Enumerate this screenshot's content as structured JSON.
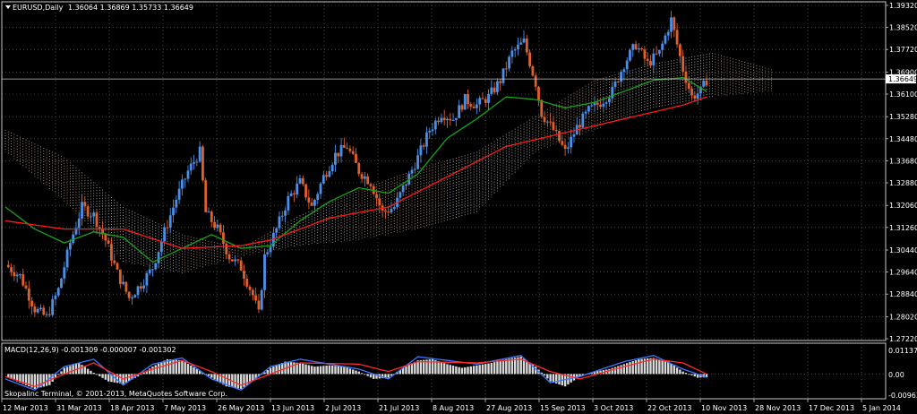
{
  "header": {
    "symbol_label": "EURUSD,Daily",
    "ohlc_label": "1.36064 1.36869 1.35733 1.36649"
  },
  "macd_panel": {
    "label": "MACD(12,26,9) -0.001309 -0.000007 -0.001302",
    "scale_top": "0.011372",
    "scale_zero": "0.00",
    "scale_bottom": "-0.009636"
  },
  "footer": {
    "copyright": "Skopalinc Terminal, © 2001-2013, MetaQuotes Software Corp."
  },
  "colors": {
    "background": "#000000",
    "grid": "#6f6f6f",
    "bull_candle": "#4a8fe8",
    "bear_candle": "#e0602a",
    "ma_fast": "#19a319",
    "ma_slow": "#ff1a1a",
    "cloud_bull": "#f0c8a0",
    "cloud_bear": "#e8e8e8",
    "macd_hist": "#d9d9d9",
    "macd_line": "#3a78ff",
    "signal_line": "#ff2a2a",
    "price_line": "#c8c8c8",
    "current_price_box": "#ffffff"
  },
  "chart_data": [
    {
      "type": "candlestick",
      "symbol": "EURUSD",
      "timeframe": "Daily",
      "ylim": [
        1.2722,
        1.3932
      ],
      "yticks": [
        "1.39320",
        "1.38520",
        "1.37720",
        "1.36900",
        "1.36100",
        "1.35280",
        "1.34480",
        "1.33680",
        "1.32880",
        "1.32060",
        "1.31260",
        "1.30440",
        "1.29640",
        "1.28840",
        "1.28020",
        "1.27220"
      ],
      "current_price": "1.36649",
      "x_ticks": [
        "12 Mar 2013",
        "31 Mar 2013",
        "18 Apr 2013",
        "7 May 2013",
        "26 May 2013",
        "13 Jun 2013",
        "2 Jul 2013",
        "21 Jul 2013",
        "8 Aug 2013",
        "27 Aug 2013",
        "15 Sep 2013",
        "3 Oct 2013",
        "22 Oct 2013",
        "10 Nov 2013",
        "28 Nov 2013",
        "17 Dec 2013",
        "5 Jan 2014"
      ],
      "close_path": [
        [
          0,
          1.299
        ],
        [
          5,
          1.295
        ],
        [
          10,
          1.283
        ],
        [
          14,
          1.28
        ],
        [
          18,
          1.29
        ],
        [
          22,
          1.307
        ],
        [
          26,
          1.32
        ],
        [
          30,
          1.317
        ],
        [
          34,
          1.308
        ],
        [
          38,
          1.296
        ],
        [
          42,
          1.287
        ],
        [
          46,
          1.292
        ],
        [
          50,
          1.298
        ],
        [
          54,
          1.311
        ],
        [
          58,
          1.323
        ],
        [
          62,
          1.333
        ],
        [
          66,
          1.34
        ],
        [
          68,
          1.318
        ],
        [
          72,
          1.312
        ],
        [
          76,
          1.302
        ],
        [
          80,
          1.298
        ],
        [
          84,
          1.288
        ],
        [
          86,
          1.281
        ],
        [
          88,
          1.302
        ],
        [
          92,
          1.312
        ],
        [
          96,
          1.323
        ],
        [
          100,
          1.329
        ],
        [
          104,
          1.32
        ],
        [
          108,
          1.331
        ],
        [
          112,
          1.339
        ],
        [
          116,
          1.342
        ],
        [
          120,
          1.333
        ],
        [
          124,
          1.329
        ],
        [
          128,
          1.318
        ],
        [
          132,
          1.32
        ],
        [
          136,
          1.329
        ],
        [
          140,
          1.338
        ],
        [
          144,
          1.348
        ],
        [
          148,
          1.354
        ],
        [
          152,
          1.352
        ],
        [
          156,
          1.359
        ],
        [
          160,
          1.357
        ],
        [
          164,
          1.36
        ],
        [
          168,
          1.366
        ],
        [
          172,
          1.376
        ],
        [
          176,
          1.38
        ],
        [
          180,
          1.365
        ],
        [
          182,
          1.354
        ],
        [
          186,
          1.348
        ],
        [
          190,
          1.34
        ],
        [
          194,
          1.349
        ],
        [
          198,
          1.355
        ],
        [
          202,
          1.358
        ],
        [
          206,
          1.362
        ],
        [
          210,
          1.372
        ],
        [
          214,
          1.379
        ],
        [
          218,
          1.372
        ],
        [
          222,
          1.376
        ],
        [
          226,
          1.388
        ],
        [
          230,
          1.37
        ],
        [
          233,
          1.36
        ],
        [
          236,
          1.362
        ],
        [
          238,
          1.366
        ]
      ],
      "ma_fast_path": [
        [
          0,
          1.32
        ],
        [
          10,
          1.312
        ],
        [
          20,
          1.307
        ],
        [
          30,
          1.311
        ],
        [
          40,
          1.309
        ],
        [
          50,
          1.3
        ],
        [
          60,
          1.305
        ],
        [
          70,
          1.31
        ],
        [
          80,
          1.305
        ],
        [
          90,
          1.306
        ],
        [
          100,
          1.315
        ],
        [
          110,
          1.322
        ],
        [
          120,
          1.327
        ],
        [
          130,
          1.325
        ],
        [
          140,
          1.332
        ],
        [
          150,
          1.345
        ],
        [
          160,
          1.352
        ],
        [
          170,
          1.36
        ],
        [
          180,
          1.359
        ],
        [
          190,
          1.356
        ],
        [
          200,
          1.358
        ],
        [
          210,
          1.362
        ],
        [
          220,
          1.366
        ],
        [
          230,
          1.367
        ],
        [
          238,
          1.362
        ]
      ],
      "ma_slow_path": [
        [
          0,
          1.315
        ],
        [
          20,
          1.312
        ],
        [
          40,
          1.312
        ],
        [
          60,
          1.305
        ],
        [
          80,
          1.306
        ],
        [
          90,
          1.308
        ],
        [
          110,
          1.316
        ],
        [
          130,
          1.32
        ],
        [
          150,
          1.331
        ],
        [
          170,
          1.342
        ],
        [
          190,
          1.347
        ],
        [
          210,
          1.352
        ],
        [
          230,
          1.357
        ],
        [
          238,
          1.36
        ]
      ],
      "cloud_path_top": [
        [
          0,
          1.348
        ],
        [
          20,
          1.338
        ],
        [
          40,
          1.32
        ],
        [
          60,
          1.31
        ],
        [
          80,
          1.305
        ],
        [
          100,
          1.317
        ],
        [
          120,
          1.326
        ],
        [
          140,
          1.334
        ],
        [
          160,
          1.34
        ],
        [
          180,
          1.353
        ],
        [
          200,
          1.366
        ],
        [
          220,
          1.372
        ],
        [
          240,
          1.376
        ],
        [
          260,
          1.37
        ]
      ],
      "cloud_path_bottom": [
        [
          0,
          1.34
        ],
        [
          20,
          1.322
        ],
        [
          40,
          1.3
        ],
        [
          60,
          1.296
        ],
        [
          80,
          1.302
        ],
        [
          100,
          1.306
        ],
        [
          120,
          1.308
        ],
        [
          140,
          1.312
        ],
        [
          160,
          1.318
        ],
        [
          180,
          1.34
        ],
        [
          200,
          1.348
        ],
        [
          220,
          1.356
        ],
        [
          240,
          1.36
        ],
        [
          260,
          1.362
        ]
      ]
    },
    {
      "type": "macd",
      "ylim": [
        -0.009636,
        0.011372
      ],
      "histogram_path": [
        [
          0,
          -0.001
        ],
        [
          5,
          -0.0035
        ],
        [
          10,
          -0.006
        ],
        [
          15,
          -0.0045
        ],
        [
          20,
          0.0025
        ],
        [
          25,
          0.0045
        ],
        [
          30,
          0.0005
        ],
        [
          35,
          -0.003
        ],
        [
          40,
          -0.004
        ],
        [
          45,
          -0.001
        ],
        [
          50,
          0.003
        ],
        [
          55,
          0.006
        ],
        [
          60,
          0.0055
        ],
        [
          65,
          0.002
        ],
        [
          70,
          -0.0015
        ],
        [
          75,
          -0.005
        ],
        [
          80,
          -0.006
        ],
        [
          85,
          -0.002
        ],
        [
          90,
          0.0025
        ],
        [
          95,
          0.005
        ],
        [
          100,
          0.0045
        ],
        [
          105,
          0.003
        ],
        [
          110,
          0.0035
        ],
        [
          115,
          0.003
        ],
        [
          120,
          0.001
        ],
        [
          125,
          -0.002
        ],
        [
          130,
          -0.0015
        ],
        [
          135,
          0.0025
        ],
        [
          140,
          0.0055
        ],
        [
          145,
          0.006
        ],
        [
          150,
          0.004
        ],
        [
          155,
          0.0025
        ],
        [
          160,
          0.0035
        ],
        [
          165,
          0.0045
        ],
        [
          170,
          0.006
        ],
        [
          175,
          0.007
        ],
        [
          180,
          0.003
        ],
        [
          185,
          -0.003
        ],
        [
          190,
          -0.005
        ],
        [
          195,
          -0.001
        ],
        [
          200,
          0.001
        ],
        [
          205,
          0.002
        ],
        [
          210,
          0.004
        ],
        [
          215,
          0.006
        ],
        [
          220,
          0.0065
        ],
        [
          225,
          0.005
        ],
        [
          230,
          0.001
        ],
        [
          235,
          -0.0015
        ],
        [
          238,
          -0.0013
        ]
      ],
      "macd_line_path": [
        [
          0,
          -0.002
        ],
        [
          10,
          -0.0065
        ],
        [
          20,
          0.003
        ],
        [
          30,
          0.006
        ],
        [
          40,
          -0.0045
        ],
        [
          50,
          0.004
        ],
        [
          60,
          0.0065
        ],
        [
          70,
          -0.002
        ],
        [
          80,
          -0.0065
        ],
        [
          90,
          0.003
        ],
        [
          100,
          0.006
        ],
        [
          120,
          0.002
        ],
        [
          130,
          -0.002
        ],
        [
          140,
          0.007
        ],
        [
          160,
          0.004
        ],
        [
          175,
          0.0075
        ],
        [
          185,
          -0.0035
        ],
        [
          195,
          -0.001
        ],
        [
          210,
          0.005
        ],
        [
          220,
          0.0075
        ],
        [
          230,
          0.002
        ],
        [
          238,
          -0.0013
        ]
      ],
      "signal_line_path": [
        [
          0,
          -0.001
        ],
        [
          10,
          -0.005
        ],
        [
          20,
          0.0
        ],
        [
          30,
          0.0045
        ],
        [
          40,
          -0.002
        ],
        [
          50,
          0.002
        ],
        [
          60,
          0.0055
        ],
        [
          70,
          0.001
        ],
        [
          80,
          -0.0045
        ],
        [
          90,
          0.0
        ],
        [
          100,
          0.0045
        ],
        [
          120,
          0.004
        ],
        [
          130,
          0.001
        ],
        [
          140,
          0.005
        ],
        [
          160,
          0.0045
        ],
        [
          175,
          0.006
        ],
        [
          185,
          0.001
        ],
        [
          195,
          -0.002
        ],
        [
          210,
          0.003
        ],
        [
          220,
          0.006
        ],
        [
          230,
          0.0045
        ],
        [
          238,
          0.0
        ]
      ]
    }
  ]
}
